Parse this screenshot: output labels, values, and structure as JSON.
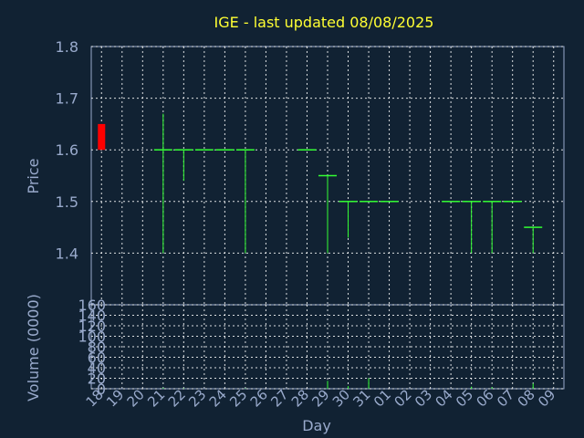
{
  "chart_data": {
    "type": "ohlc",
    "title": "IGE - last updated 08/08/2025",
    "price_axis": {
      "label": "Price",
      "ylim": [
        1.3,
        1.8
      ],
      "ticks": [
        "1.4",
        "1.5",
        "1.6",
        "1.7",
        "1.8"
      ]
    },
    "volume_axis": {
      "label": "Volume (0000)",
      "ylim": [
        0,
        160
      ],
      "ticks": [
        "0",
        "20",
        "40",
        "60",
        "80",
        "100",
        "120",
        "140",
        "160"
      ]
    },
    "x_axis": {
      "label": "Day",
      "ticks": [
        "18",
        "19",
        "20",
        "21",
        "22",
        "23",
        "24",
        "25",
        "26",
        "27",
        "28",
        "29",
        "30",
        "31",
        "01",
        "02",
        "03",
        "04",
        "05",
        "06",
        "07",
        "08",
        "09"
      ]
    },
    "grid": true,
    "colors": {
      "background": "#112233",
      "bar": "#33ff33",
      "first_bar": "#ff0000",
      "title": "#ffff33",
      "axis_text": "#99aacc"
    },
    "bars": [
      {
        "day": "18",
        "open": 1.6,
        "high": 1.65,
        "low": 1.6,
        "close": 1.65,
        "volume": 0
      },
      {
        "day": "21",
        "open": 1.6,
        "high": 1.67,
        "low": 1.4,
        "close": 1.6,
        "volume": 2
      },
      {
        "day": "22",
        "open": 1.6,
        "high": 1.6,
        "low": 1.54,
        "close": 1.6,
        "volume": 1
      },
      {
        "day": "23",
        "open": 1.6,
        "high": 1.6,
        "low": 1.6,
        "close": 1.6,
        "volume": 0
      },
      {
        "day": "24",
        "open": 1.6,
        "high": 1.6,
        "low": 1.6,
        "close": 1.6,
        "volume": 0
      },
      {
        "day": "25",
        "open": 1.6,
        "high": 1.6,
        "low": 1.4,
        "close": 1.6,
        "volume": 1
      },
      {
        "day": "28",
        "open": 1.6,
        "high": 1.6,
        "low": 1.6,
        "close": 1.6,
        "volume": 0
      },
      {
        "day": "29",
        "open": 1.55,
        "high": 1.55,
        "low": 1.4,
        "close": 1.55,
        "volume": 15
      },
      {
        "day": "30",
        "open": 1.5,
        "high": 1.5,
        "low": 1.43,
        "close": 1.5,
        "volume": 5
      },
      {
        "day": "31",
        "open": 1.5,
        "high": 1.5,
        "low": 1.5,
        "close": 1.5,
        "volume": 20
      },
      {
        "day": "01",
        "open": 1.5,
        "high": 1.5,
        "low": 1.5,
        "close": 1.5,
        "volume": 0
      },
      {
        "day": "04",
        "open": 1.5,
        "high": 1.5,
        "low": 1.5,
        "close": 1.5,
        "volume": 0
      },
      {
        "day": "05",
        "open": 1.5,
        "high": 1.5,
        "low": 1.4,
        "close": 1.5,
        "volume": 4
      },
      {
        "day": "06",
        "open": 1.5,
        "high": 1.5,
        "low": 1.4,
        "close": 1.5,
        "volume": 3
      },
      {
        "day": "07",
        "open": 1.5,
        "high": 1.5,
        "low": 1.5,
        "close": 1.5,
        "volume": 0
      },
      {
        "day": "08",
        "open": 1.45,
        "high": 1.45,
        "low": 1.4,
        "close": 1.45,
        "volume": 10
      }
    ]
  }
}
